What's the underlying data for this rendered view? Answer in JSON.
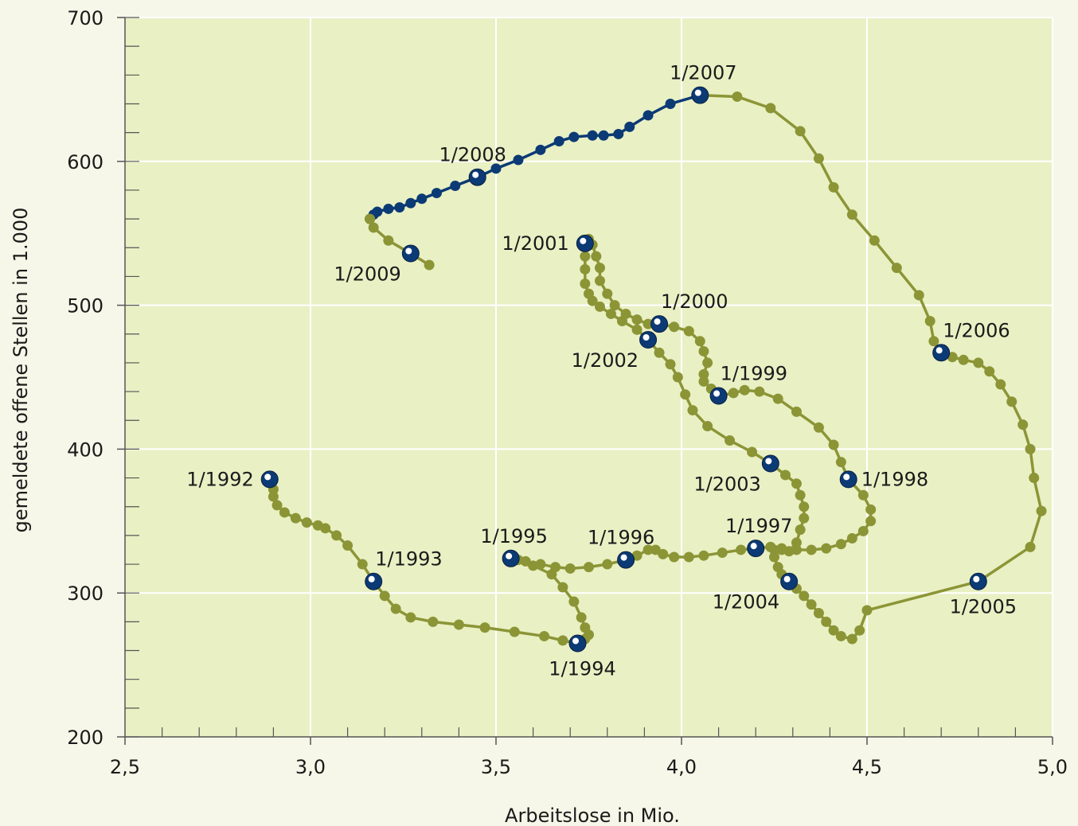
{
  "chart_data": {
    "type": "line",
    "xlabel": "Arbeitslose in Mio.",
    "ylabel": "gemeldete offene Stellen in 1.000",
    "xlim": [
      2.5,
      5.0
    ],
    "ylim": [
      200,
      700
    ],
    "x_ticks": [
      2.5,
      3.0,
      3.5,
      4.0,
      4.5,
      5.0
    ],
    "x_tick_labels": [
      "2,5",
      "3,0",
      "3,5",
      "4,0",
      "4,5",
      "5,0"
    ],
    "y_ticks": [
      200,
      300,
      400,
      500,
      600,
      700
    ],
    "y_tick_labels": [
      "200",
      "300",
      "400",
      "500",
      "600",
      "700"
    ],
    "grid": true,
    "colors": {
      "plot_background": "#e9f0c4",
      "page_background": "#f6f7e8",
      "series_green": "#8c9536",
      "series_blue": "#0b3a75",
      "grid": "#ffffff"
    },
    "series": [
      {
        "color": "#8c9536",
        "points": [
          [
            2.89,
            379
          ],
          [
            2.9,
            372
          ],
          [
            2.9,
            367
          ],
          [
            2.91,
            361
          ],
          [
            2.93,
            356
          ],
          [
            2.96,
            352
          ],
          [
            2.99,
            349
          ],
          [
            3.02,
            347
          ],
          [
            3.04,
            345
          ],
          [
            3.07,
            340
          ],
          [
            3.1,
            333
          ],
          [
            3.14,
            320
          ],
          [
            3.17,
            308
          ],
          [
            3.2,
            298
          ],
          [
            3.23,
            289
          ],
          [
            3.27,
            283
          ],
          [
            3.33,
            280
          ],
          [
            3.4,
            278
          ],
          [
            3.47,
            276
          ],
          [
            3.55,
            273
          ],
          [
            3.63,
            270
          ],
          [
            3.68,
            267
          ],
          [
            3.72,
            265
          ],
          [
            3.74,
            268
          ],
          [
            3.75,
            271
          ],
          [
            3.74,
            276
          ],
          [
            3.73,
            283
          ],
          [
            3.71,
            294
          ],
          [
            3.68,
            304
          ],
          [
            3.65,
            313
          ],
          [
            3.6,
            319
          ],
          [
            3.56,
            323
          ],
          [
            3.54,
            324
          ],
          [
            3.58,
            322
          ],
          [
            3.62,
            320
          ],
          [
            3.66,
            318
          ],
          [
            3.7,
            317
          ],
          [
            3.75,
            318
          ],
          [
            3.8,
            320
          ],
          [
            3.85,
            323
          ],
          [
            3.88,
            326
          ],
          [
            3.91,
            330
          ],
          [
            3.93,
            330
          ],
          [
            3.95,
            327
          ],
          [
            3.98,
            325
          ],
          [
            4.02,
            325
          ],
          [
            4.06,
            326
          ],
          [
            4.11,
            328
          ],
          [
            4.16,
            330
          ],
          [
            4.2,
            331
          ],
          [
            4.24,
            332
          ],
          [
            4.27,
            331
          ],
          [
            4.29,
            329
          ],
          [
            4.31,
            335
          ],
          [
            4.32,
            344
          ],
          [
            4.33,
            352
          ],
          [
            4.33,
            360
          ],
          [
            4.32,
            368
          ],
          [
            4.31,
            376
          ],
          [
            4.28,
            382
          ],
          [
            4.24,
            390
          ],
          [
            4.19,
            398
          ],
          [
            4.13,
            406
          ],
          [
            4.07,
            416
          ],
          [
            4.03,
            427
          ],
          [
            4.01,
            438
          ],
          [
            3.99,
            450
          ],
          [
            3.97,
            459
          ],
          [
            3.94,
            467
          ],
          [
            3.91,
            476
          ],
          [
            3.88,
            483
          ],
          [
            3.84,
            489
          ],
          [
            3.81,
            494
          ],
          [
            3.78,
            499
          ],
          [
            3.76,
            503
          ],
          [
            3.75,
            508
          ],
          [
            3.74,
            515
          ],
          [
            3.74,
            525
          ],
          [
            3.74,
            534
          ],
          [
            3.74,
            543
          ],
          [
            3.75,
            546
          ],
          [
            3.76,
            542
          ],
          [
            3.77,
            534
          ],
          [
            3.78,
            526
          ],
          [
            3.78,
            517
          ],
          [
            3.8,
            508
          ],
          [
            3.82,
            500
          ],
          [
            3.85,
            494
          ],
          [
            3.88,
            490
          ],
          [
            3.91,
            487
          ],
          [
            3.94,
            487
          ],
          [
            3.98,
            485
          ],
          [
            4.02,
            482
          ],
          [
            4.05,
            475
          ],
          [
            4.06,
            468
          ],
          [
            4.07,
            460
          ],
          [
            4.06,
            452
          ],
          [
            4.06,
            447
          ],
          [
            4.08,
            442
          ],
          [
            4.1,
            437
          ],
          [
            4.14,
            439
          ],
          [
            4.17,
            441
          ],
          [
            4.21,
            440
          ],
          [
            4.26,
            435
          ],
          [
            4.31,
            426
          ],
          [
            4.37,
            415
          ],
          [
            4.41,
            403
          ],
          [
            4.43,
            391
          ],
          [
            4.45,
            379
          ],
          [
            4.49,
            368
          ],
          [
            4.51,
            358
          ],
          [
            4.51,
            350
          ],
          [
            4.49,
            343
          ],
          [
            4.46,
            338
          ],
          [
            4.43,
            334
          ],
          [
            4.39,
            331
          ],
          [
            4.35,
            330
          ],
          [
            4.31,
            330
          ],
          [
            4.27,
            330
          ],
          [
            4.25,
            330
          ],
          [
            4.24,
            332
          ],
          [
            4.25,
            325
          ],
          [
            4.26,
            318
          ],
          [
            4.27,
            313
          ],
          [
            4.29,
            308
          ],
          [
            4.31,
            303
          ],
          [
            4.33,
            298
          ],
          [
            4.35,
            292
          ],
          [
            4.37,
            286
          ],
          [
            4.39,
            280
          ],
          [
            4.41,
            274
          ],
          [
            4.43,
            270
          ],
          [
            4.46,
            268
          ],
          [
            4.48,
            274
          ],
          [
            4.5,
            288
          ],
          [
            4.8,
            308
          ],
          [
            4.94,
            332
          ],
          [
            4.97,
            357
          ],
          [
            4.95,
            380
          ],
          [
            4.94,
            400
          ],
          [
            4.92,
            417
          ],
          [
            4.89,
            433
          ],
          [
            4.86,
            445
          ],
          [
            4.83,
            454
          ],
          [
            4.8,
            460
          ],
          [
            4.76,
            462
          ],
          [
            4.73,
            464
          ],
          [
            4.7,
            467
          ],
          [
            4.68,
            475
          ],
          [
            4.67,
            489
          ],
          [
            4.64,
            507
          ],
          [
            4.58,
            526
          ],
          [
            4.52,
            545
          ],
          [
            4.46,
            563
          ],
          [
            4.41,
            582
          ],
          [
            4.37,
            602
          ],
          [
            4.32,
            621
          ],
          [
            4.24,
            637
          ],
          [
            4.15,
            645
          ],
          [
            4.05,
            646
          ]
        ]
      },
      {
        "color": "#0b3a75",
        "points": [
          [
            4.05,
            646
          ],
          [
            3.97,
            640
          ],
          [
            3.91,
            632
          ],
          [
            3.86,
            624
          ],
          [
            3.83,
            619
          ],
          [
            3.79,
            618
          ],
          [
            3.76,
            618
          ],
          [
            3.71,
            617
          ],
          [
            3.67,
            614
          ],
          [
            3.62,
            608
          ],
          [
            3.56,
            601
          ],
          [
            3.5,
            595
          ],
          [
            3.45,
            589
          ],
          [
            3.39,
            583
          ],
          [
            3.34,
            578
          ],
          [
            3.3,
            574
          ],
          [
            3.27,
            571
          ],
          [
            3.24,
            568
          ],
          [
            3.21,
            567
          ],
          [
            3.18,
            565
          ],
          [
            3.17,
            563
          ],
          [
            3.16,
            560
          ]
        ]
      },
      {
        "color": "#8c9536",
        "points": [
          [
            3.16,
            560
          ],
          [
            3.17,
            554
          ],
          [
            3.21,
            545
          ],
          [
            3.27,
            536
          ],
          [
            3.32,
            528
          ]
        ]
      }
    ],
    "markers": [
      {
        "label": "1/1992",
        "x": 2.89,
        "y": 379,
        "anchor": "left"
      },
      {
        "label": "1/1993",
        "x": 3.17,
        "y": 308,
        "anchor": "above-right"
      },
      {
        "label": "1/1994",
        "x": 3.72,
        "y": 265,
        "anchor": "below"
      },
      {
        "label": "1/1995",
        "x": 3.54,
        "y": 324,
        "anchor": "above"
      },
      {
        "label": "1/1996",
        "x": 3.85,
        "y": 323,
        "anchor": "above-left"
      },
      {
        "label": "1/1997",
        "x": 4.2,
        "y": 331,
        "anchor": "above"
      },
      {
        "label": "1/1998",
        "x": 4.45,
        "y": 379,
        "anchor": "right"
      },
      {
        "label": "1/1999",
        "x": 4.1,
        "y": 437,
        "anchor": "above-right"
      },
      {
        "label": "1/2000",
        "x": 3.94,
        "y": 487,
        "anchor": "above-right"
      },
      {
        "label": "1/2001",
        "x": 3.74,
        "y": 543,
        "anchor": "left"
      },
      {
        "label": "1/2002",
        "x": 3.91,
        "y": 476,
        "anchor": "below-left"
      },
      {
        "label": "1/2003",
        "x": 4.24,
        "y": 390,
        "anchor": "below-left"
      },
      {
        "label": "1/2004",
        "x": 4.29,
        "y": 308,
        "anchor": "below-left"
      },
      {
        "label": "1/2005",
        "x": 4.8,
        "y": 308,
        "anchor": "below"
      },
      {
        "label": "1/2006",
        "x": 4.7,
        "y": 467,
        "anchor": "above-right"
      },
      {
        "label": "1/2007",
        "x": 4.05,
        "y": 646,
        "anchor": "above"
      },
      {
        "label": "1/2008",
        "x": 3.45,
        "y": 589,
        "anchor": "above-left"
      },
      {
        "label": "1/2009",
        "x": 3.27,
        "y": 536,
        "anchor": "below-left"
      }
    ]
  }
}
